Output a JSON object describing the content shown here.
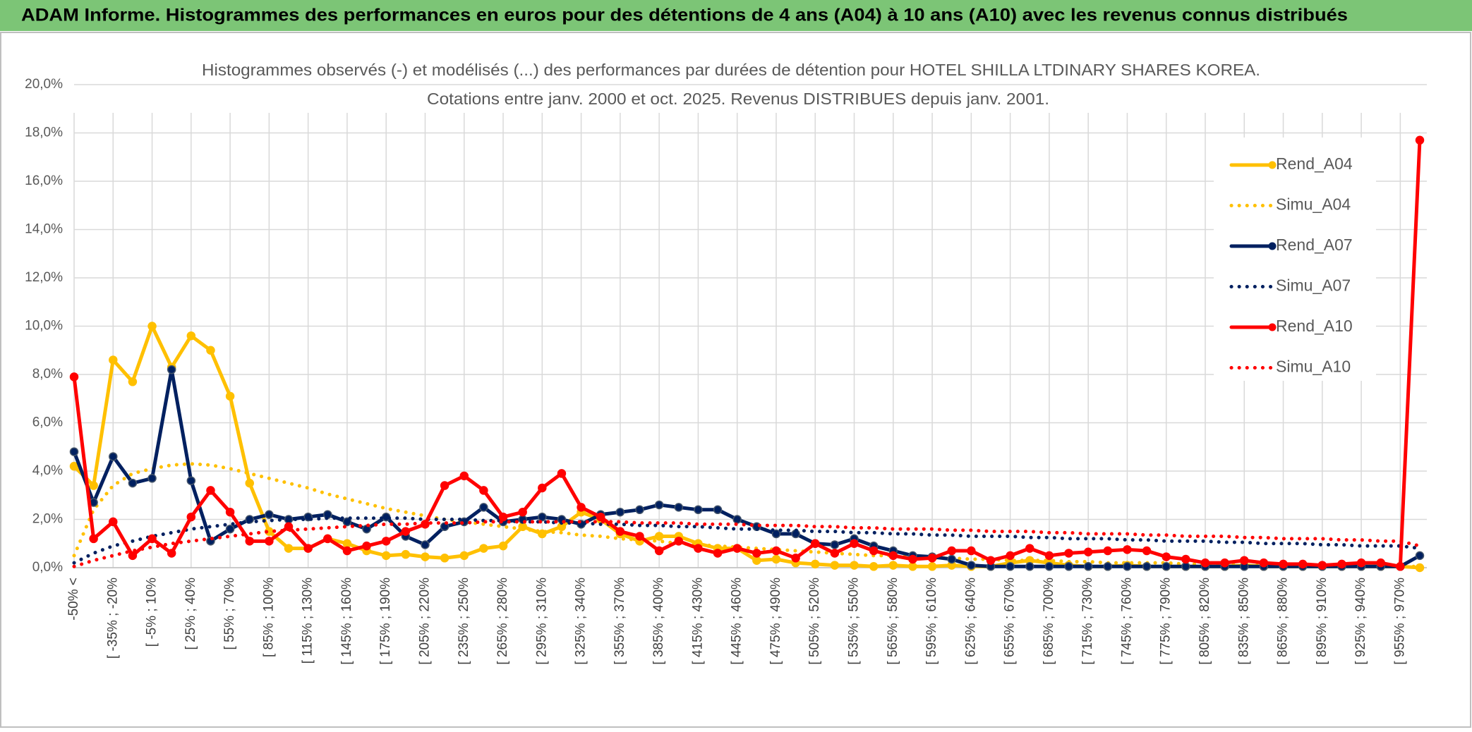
{
  "header": {
    "title": "ADAM Informe. Histogrammes des performances en euros pour des détentions de 4 ans (A04) à 10 ans (A10) avec les revenus connus distribués"
  },
  "chart_data": {
    "type": "line",
    "title_lines": [
      "Histogrammes observés (-) et modélisés (...) des performances par durées de détention pour HOTEL SHILLA LTDINARY SHARES KOREA.",
      "Cotations entre janv. 2000 et oct. 2025. Revenus DISTRIBUES depuis janv. 2001."
    ],
    "categories": [
      "-50% <",
      null,
      "[ -35% ; -20%",
      null,
      "[ -5% ; 10%",
      null,
      "[ 25% ; 40%",
      null,
      "[ 55% ; 70%",
      null,
      "[ 85% ; 100%",
      null,
      "[ 115% ; 130%",
      null,
      "[ 145% ; 160%",
      null,
      "[ 175% ; 190%",
      null,
      "[ 205% ; 220%",
      null,
      "[ 235% ; 250%",
      null,
      "[ 265% ; 280%",
      null,
      "[ 295% ; 310%",
      null,
      "[ 325% ; 340%",
      null,
      "[ 355% ; 370%",
      null,
      "[ 385% ; 400%",
      null,
      "[ 415% ; 430%",
      null,
      "[ 445% ; 460%",
      null,
      "[ 475% ; 490%",
      null,
      "[ 505% ; 520%",
      null,
      "[ 535% ; 550%",
      null,
      "[ 565% ; 580%",
      null,
      "[ 595% ; 610%",
      null,
      "[ 625% ; 640%",
      null,
      "[ 655% ; 670%",
      null,
      "[ 685% ; 700%",
      null,
      "[ 715% ; 730%",
      null,
      "[ 745% ; 760%",
      null,
      "[ 775% ; 790%",
      null,
      "[ 805% ; 820%",
      null,
      "[ 835% ; 850%",
      null,
      "[ 865% ; 880%",
      null,
      "[ 895% ; 910%",
      null,
      "[ 925% ; 940%",
      null,
      "[ 955% ; 970%",
      null
    ],
    "ylim": [
      0,
      20
    ],
    "yticks": [
      {
        "value": 0,
        "label": "0,0%"
      },
      {
        "value": 2,
        "label": "2,0%"
      },
      {
        "value": 4,
        "label": "4,0%"
      },
      {
        "value": 6,
        "label": "6,0%"
      },
      {
        "value": 8,
        "label": "8,0%"
      },
      {
        "value": 10,
        "label": "10,0%"
      },
      {
        "value": 12,
        "label": "12,0%"
      },
      {
        "value": 14,
        "label": "14,0%"
      },
      {
        "value": 16,
        "label": "16,0%"
      },
      {
        "value": 18,
        "label": "18,0%"
      },
      {
        "value": 20,
        "label": "20,0%"
      }
    ],
    "grid": true,
    "legend": "right",
    "series": [
      {
        "name": "Rend_A04",
        "color": "#ffc000",
        "line_style": "solid",
        "markers": true,
        "values": [
          4.2,
          3.4,
          8.6,
          7.7,
          10.0,
          8.3,
          9.6,
          9.0,
          7.1,
          3.5,
          1.5,
          0.8,
          0.8,
          1.2,
          1.0,
          0.7,
          0.5,
          0.55,
          0.45,
          0.4,
          0.5,
          0.8,
          0.9,
          1.7,
          1.4,
          1.7,
          2.3,
          2.0,
          1.4,
          1.1,
          1.3,
          1.3,
          1.0,
          0.8,
          0.8,
          0.3,
          0.35,
          0.2,
          0.15,
          0.1,
          0.1,
          0.05,
          0.1,
          0.05,
          0.05,
          0.1,
          0.05,
          0.05,
          0.2,
          0.3,
          0.2,
          0.1,
          0.05,
          0.05,
          0.1,
          0.05,
          0.05,
          0.05,
          0.05,
          0.05,
          0.1,
          0.05,
          0.05,
          0.05,
          0.05,
          0.05,
          0.05,
          0.05,
          0.05,
          0
        ]
      },
      {
        "name": "Simu_A04",
        "color": "#ffc000",
        "line_style": "dotted",
        "markers": false,
        "values": [
          0.5,
          2.4,
          3.4,
          3.9,
          4.1,
          4.25,
          4.3,
          4.25,
          4.1,
          3.9,
          3.7,
          3.5,
          3.3,
          3.05,
          2.85,
          2.65,
          2.45,
          2.3,
          2.15,
          2.0,
          1.9,
          1.8,
          1.7,
          1.6,
          1.5,
          1.45,
          1.35,
          1.3,
          1.2,
          1.15,
          1.1,
          1.0,
          0.95,
          0.9,
          0.85,
          0.8,
          0.75,
          0.7,
          0.65,
          0.6,
          0.55,
          0.5,
          0.5,
          0.45,
          0.4,
          0.4,
          0.35,
          0.35,
          0.3,
          0.3,
          0.3,
          0.25,
          0.25,
          0.2,
          0.2,
          0.2,
          0.2,
          0.15,
          0.15,
          0.15,
          0.1,
          0.1,
          0.1,
          0.1,
          0.1,
          0.1,
          0.05,
          0.05,
          0.05,
          0.05
        ]
      },
      {
        "name": "Rend_A07",
        "color": "#002060",
        "line_style": "solid",
        "markers": true,
        "values": [
          4.8,
          2.7,
          4.6,
          3.5,
          3.7,
          8.2,
          3.6,
          1.1,
          1.6,
          2.0,
          2.2,
          2.0,
          2.1,
          2.2,
          1.9,
          1.6,
          2.1,
          1.3,
          0.95,
          1.7,
          1.9,
          2.5,
          1.9,
          2.0,
          2.1,
          2.0,
          1.8,
          2.2,
          2.3,
          2.4,
          2.6,
          2.5,
          2.4,
          2.4,
          2.0,
          1.7,
          1.4,
          1.4,
          1.0,
          0.95,
          1.2,
          0.9,
          0.7,
          0.5,
          0.45,
          0.35,
          0.1,
          0.05,
          0.05,
          0.05,
          0.05,
          0.05,
          0.05,
          0.05,
          0.05,
          0.05,
          0.05,
          0.05,
          0.05,
          0.05,
          0.05,
          0.05,
          0.05,
          0.05,
          0.05,
          0.05,
          0.05,
          0.05,
          0.05,
          0.5
        ]
      },
      {
        "name": "Simu_A07",
        "color": "#002060",
        "line_style": "dotted",
        "markers": false,
        "values": [
          0.2,
          0.6,
          0.9,
          1.1,
          1.3,
          1.45,
          1.6,
          1.7,
          1.8,
          1.9,
          1.95,
          2.0,
          2.0,
          2.05,
          2.05,
          2.05,
          2.05,
          2.05,
          2.0,
          2.0,
          2.0,
          1.95,
          1.95,
          1.9,
          1.9,
          1.85,
          1.85,
          1.8,
          1.8,
          1.75,
          1.75,
          1.7,
          1.7,
          1.65,
          1.6,
          1.6,
          1.55,
          1.55,
          1.5,
          1.5,
          1.45,
          1.45,
          1.4,
          1.4,
          1.35,
          1.35,
          1.3,
          1.3,
          1.3,
          1.25,
          1.25,
          1.2,
          1.2,
          1.2,
          1.15,
          1.15,
          1.1,
          1.1,
          1.1,
          1.05,
          1.05,
          1.0,
          1.0,
          1.0,
          0.95,
          0.95,
          0.9,
          0.9,
          0.9,
          0.8
        ]
      },
      {
        "name": "Rend_A10",
        "color": "#ff0000",
        "line_style": "solid",
        "markers": true,
        "values": [
          7.9,
          1.2,
          1.9,
          0.5,
          1.2,
          0.6,
          2.1,
          3.2,
          2.3,
          1.1,
          1.1,
          1.7,
          0.8,
          1.2,
          0.7,
          0.9,
          1.1,
          1.5,
          1.8,
          3.4,
          3.8,
          3.2,
          2.1,
          2.3,
          3.3,
          3.9,
          2.5,
          2.1,
          1.5,
          1.3,
          0.7,
          1.1,
          0.8,
          0.6,
          0.8,
          0.6,
          0.7,
          0.4,
          1.0,
          0.6,
          1.0,
          0.7,
          0.5,
          0.35,
          0.4,
          0.7,
          0.7,
          0.3,
          0.5,
          0.8,
          0.5,
          0.6,
          0.65,
          0.7,
          0.75,
          0.7,
          0.45,
          0.35,
          0.2,
          0.2,
          0.3,
          0.2,
          0.15,
          0.15,
          0.1,
          0.15,
          0.2,
          0.2,
          0.05,
          17.7
        ]
      },
      {
        "name": "Simu_A10",
        "color": "#ff0000",
        "line_style": "dotted",
        "markers": false,
        "values": [
          0.05,
          0.3,
          0.5,
          0.7,
          0.85,
          1.0,
          1.1,
          1.2,
          1.3,
          1.4,
          1.5,
          1.55,
          1.6,
          1.65,
          1.7,
          1.75,
          1.8,
          1.8,
          1.85,
          1.85,
          1.85,
          1.9,
          1.9,
          1.9,
          1.9,
          1.9,
          1.9,
          1.9,
          1.9,
          1.85,
          1.85,
          1.85,
          1.8,
          1.8,
          1.8,
          1.75,
          1.75,
          1.75,
          1.7,
          1.7,
          1.65,
          1.65,
          1.6,
          1.6,
          1.6,
          1.55,
          1.55,
          1.5,
          1.5,
          1.5,
          1.45,
          1.45,
          1.4,
          1.4,
          1.4,
          1.35,
          1.35,
          1.3,
          1.3,
          1.3,
          1.25,
          1.25,
          1.2,
          1.2,
          1.2,
          1.15,
          1.15,
          1.1,
          1.1,
          0.9
        ]
      }
    ]
  }
}
